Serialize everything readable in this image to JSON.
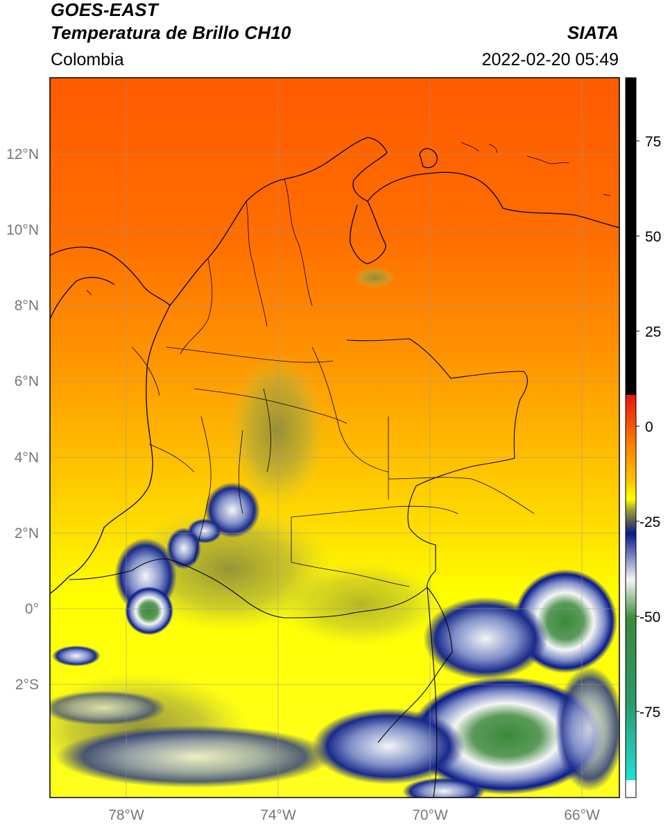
{
  "header": {
    "title_line1": "GOES-EAST",
    "title_line2": "Temperatura de Brillo CH10",
    "source": "SIATA",
    "region": "Colombia",
    "datetime": "2022-02-20 05:49"
  },
  "axes": {
    "lon_ticks": [
      "78°W",
      "74°W",
      "70°W",
      "66°W"
    ],
    "lat_ticks": [
      "12°N",
      "10°N",
      "8°N",
      "6°N",
      "4°N",
      "2°N",
      "0°",
      "2°S"
    ]
  },
  "colorbar": {
    "tick_labels": [
      "75",
      "50",
      "25",
      "0",
      "-25",
      "-50",
      "-75"
    ],
    "colors": {
      "black": "#000000",
      "red": "#e8150d",
      "orange": "#ff8000",
      "yellow": "#ffff00",
      "olive": "#9a9a3a",
      "navy": "#0a1a8a",
      "white": "#f5f5f5",
      "green": "#3a8a3a",
      "cyan": "#20e0d8"
    }
  },
  "legend_note": {
    "colors": {
      "sea_north": "#ff5a00",
      "mid": "#ffa000",
      "south": "#ffee00"
    }
  }
}
